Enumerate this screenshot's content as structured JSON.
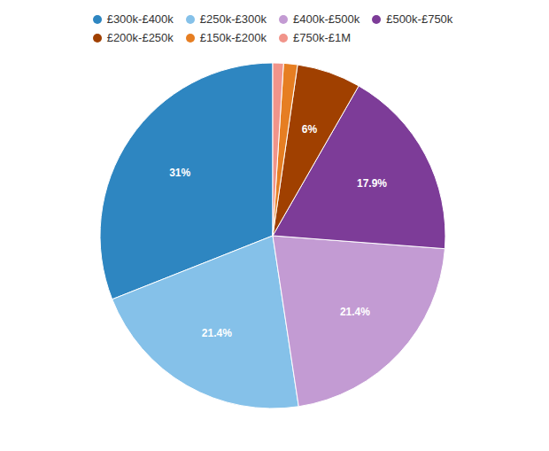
{
  "chart_data": {
    "type": "pie",
    "categories": [
      "£300k-£400k",
      "£250k-£300k",
      "£400k-£500k",
      "£500k-£750k",
      "£200k-£250k",
      "£150k-£200k",
      "£750k-£1M"
    ],
    "values": [
      31.0,
      21.4,
      21.4,
      17.9,
      6.0,
      1.3,
      1.0
    ],
    "value_labels": [
      "31%",
      "21.4%",
      "21.4%",
      "17.9%",
      "6%",
      null,
      null
    ],
    "colors": [
      "#2e86c1",
      "#85c1e9",
      "#c39bd3",
      "#7d3c98",
      "#a04000",
      "#e67e22",
      "#f1948a"
    ],
    "data_labels": true,
    "legend": "top"
  }
}
